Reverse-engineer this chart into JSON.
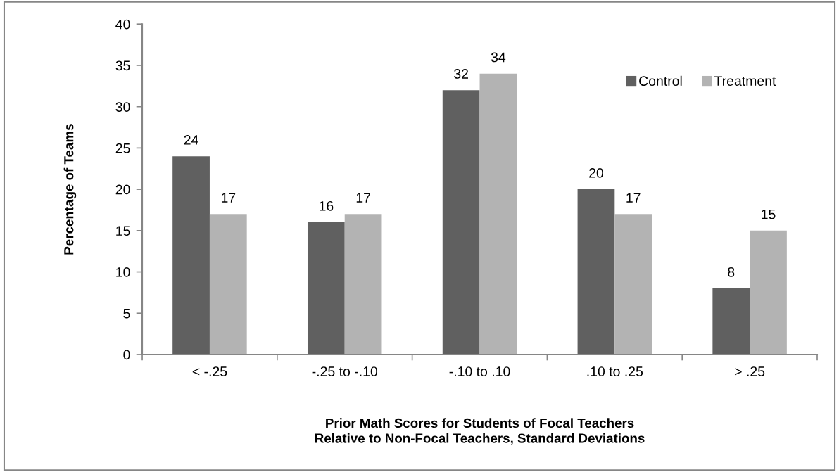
{
  "chart_data": {
    "type": "bar",
    "xlabel": "Prior Math Scores for Students of Focal Teachers\nRelative to Non-Focal Teachers, Standard Deviations",
    "ylabel": "Percentage of Teams",
    "categories": [
      "< -.25",
      "-.25 to -.10",
      "-.10 to .10",
      ".10 to .25",
      "> .25"
    ],
    "series": [
      {
        "name": "Control",
        "color": "#606060",
        "values": [
          24,
          16,
          32,
          20,
          8
        ]
      },
      {
        "name": "Treatment",
        "color": "#b3b3b3",
        "values": [
          17,
          17,
          34,
          17,
          15
        ]
      }
    ],
    "ylim": [
      0,
      40
    ],
    "yticks": [
      0,
      5,
      10,
      15,
      20,
      25,
      30,
      35,
      40
    ],
    "data_labels": true,
    "legend": "top right",
    "grid": false
  }
}
